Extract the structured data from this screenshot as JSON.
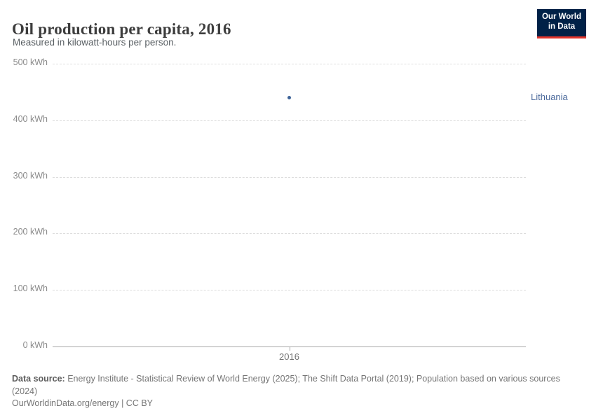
{
  "header": {
    "title": "Oil production per capita, 2016",
    "subtitle": "Measured in kilowatt-hours per person."
  },
  "logo": {
    "line1": "Our World",
    "line2": "in Data",
    "bg_color": "#002147",
    "accent_color": "#e0342c"
  },
  "chart_data": {
    "type": "scatter",
    "title": "Oil production per capita, 2016",
    "xlabel": "",
    "ylabel": "kWh",
    "ylim": [
      0,
      500
    ],
    "yticks": [
      0,
      100,
      200,
      300,
      400,
      500
    ],
    "ytick_suffix": " kWh",
    "xticks": [
      "2016"
    ],
    "grid": "horizontal-dashed",
    "legend_position": "right-of-plot",
    "series": [
      {
        "name": "Lithuania",
        "x": [
          "2016"
        ],
        "values": [
          440
        ]
      }
    ],
    "point_color": "#3d6398",
    "label_color": "#4c6a9c"
  },
  "footer": {
    "source_label": "Data source:",
    "source_text": " Energy Institute - Statistical Review of World Energy (2025); The Shift Data Portal (2019); Population based on various sources (2024)",
    "license": "OurWorldinData.org/energy | CC BY"
  }
}
